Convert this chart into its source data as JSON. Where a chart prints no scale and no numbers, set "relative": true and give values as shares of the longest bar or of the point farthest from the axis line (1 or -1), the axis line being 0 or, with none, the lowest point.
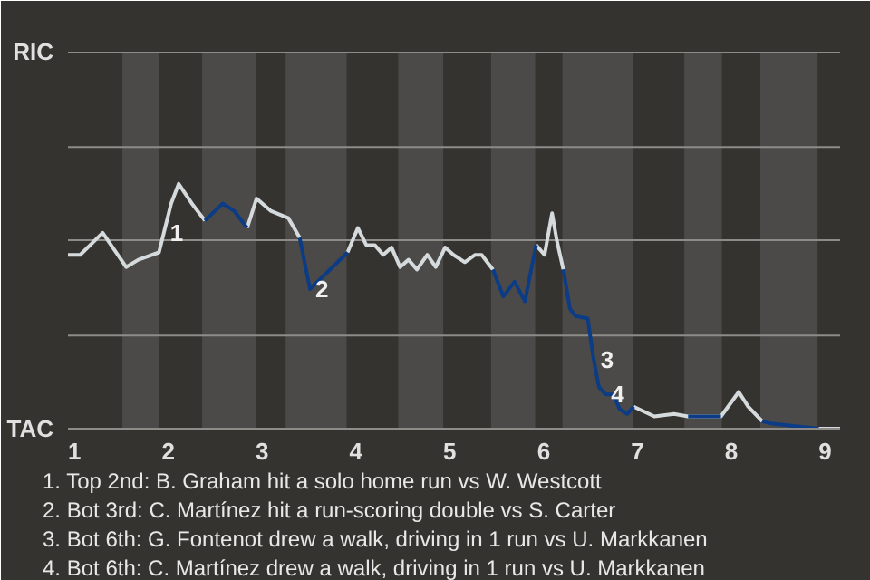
{
  "chart_data": {
    "type": "line",
    "x": [
      0.93,
      1.06,
      1.3,
      1.55,
      1.68,
      1.9,
      2.03,
      2.11,
      2.25,
      2.39,
      2.58,
      2.7,
      2.84,
      2.94,
      3.09,
      3.28,
      3.4,
      3.51,
      3.91,
      4.02,
      4.11,
      4.2,
      4.29,
      4.38,
      4.47,
      4.56,
      4.65,
      4.76,
      4.85,
      4.95,
      5.04,
      5.16,
      5.27,
      5.34,
      5.46,
      5.57,
      5.69,
      5.8,
      5.92,
      6.01,
      6.09,
      6.14,
      6.21,
      6.28,
      6.34,
      6.47,
      6.53,
      6.59,
      6.66,
      6.74,
      6.81,
      6.89,
      6.96,
      7.18,
      7.39,
      7.54,
      7.89,
      8.08,
      8.18,
      8.33,
      8.44,
      8.93,
      9.16
    ],
    "series": [
      {
        "color": "#d5dadd",
        "values": [
          0.71,
          0.71,
          0.8,
          0.66,
          0.69,
          0.72,
          0.92,
          1,
          0.92,
          0.85,
          null,
          null,
          0.82,
          0.94,
          0.89,
          0.86,
          0.78,
          null,
          0.72,
          0.82,
          0.75,
          0.75,
          0.71,
          0.74,
          0.66,
          0.69,
          0.65,
          0.71,
          0.66,
          0.74,
          0.71,
          0.68,
          0.71,
          0.71,
          0.65,
          null,
          null,
          null,
          0.75,
          0.71,
          0.88,
          0.77,
          0.65,
          null,
          null,
          null,
          null,
          null,
          null,
          null,
          null,
          null,
          0.09,
          0.05,
          0.06,
          0.05,
          0.05,
          0.15,
          0.09,
          0.03,
          null,
          0,
          0
        ]
      },
      {
        "color": "#0b3c85",
        "values": [
          null,
          null,
          null,
          null,
          null,
          null,
          null,
          null,
          null,
          0.85,
          0.92,
          0.89,
          0.82,
          null,
          null,
          null,
          0.78,
          0.57,
          0.72,
          null,
          null,
          null,
          null,
          null,
          null,
          null,
          null,
          null,
          null,
          null,
          null,
          null,
          null,
          null,
          0.65,
          0.54,
          0.6,
          0.52,
          0.75,
          null,
          null,
          null,
          0.65,
          0.49,
          0.46,
          0.45,
          0.29,
          0.17,
          0.14,
          0.14,
          0.08,
          0.06,
          0.09,
          null,
          null,
          0.05,
          0.05,
          null,
          null,
          0.03,
          0.02,
          0,
          null
        ]
      }
    ],
    "xlim": [
      0.93,
      9.16
    ],
    "xticks": [
      1,
      2,
      3,
      4,
      5,
      6,
      7,
      8,
      9
    ],
    "relative": true,
    "ref_lines": [
      {
        "axis": "y",
        "value": 0,
        "color": "#8e8c88"
      },
      {
        "axis": "y",
        "value": 0.38,
        "color": "#8e8c88"
      },
      {
        "axis": "y",
        "value": 0.77,
        "color": "#8e8c88"
      },
      {
        "axis": "y",
        "value": 1.15,
        "color": "#8e8c88"
      },
      {
        "axis": "y",
        "value": 1.54,
        "color": "#8e8c88"
      }
    ],
    "bands": [
      {
        "axis": "x",
        "from": 1.51,
        "to": 1.9,
        "color": "#4b4a48"
      },
      {
        "axis": "x",
        "from": 2.36,
        "to": 2.93,
        "color": "#4b4a48"
      },
      {
        "axis": "x",
        "from": 3.25,
        "to": 3.9,
        "color": "#4b4a48"
      },
      {
        "axis": "x",
        "from": 4.45,
        "to": 4.93,
        "color": "#4b4a48"
      },
      {
        "axis": "x",
        "from": 5.44,
        "to": 5.91,
        "color": "#4b4a48"
      },
      {
        "axis": "x",
        "from": 6.2,
        "to": 6.95,
        "color": "#4b4a48"
      },
      {
        "axis": "x",
        "from": 7.5,
        "to": 7.9,
        "color": "#4b4a48"
      },
      {
        "axis": "x",
        "from": 8.31,
        "to": 8.92,
        "color": "#4b4a48"
      }
    ],
    "annotations": [
      {
        "text": "RIC",
        "x": 0.93,
        "y": 1.54
      },
      {
        "text": "TAC",
        "x": 0.93,
        "y": 0
      },
      {
        "text": "1",
        "x": 1.96,
        "y": 0.8
      },
      {
        "text": "2",
        "x": 3.51,
        "y": 0.57
      },
      {
        "text": "3",
        "x": 6.55,
        "y": 0.28
      },
      {
        "text": "4",
        "x": 6.66,
        "y": 0.14
      },
      "1. Top 2nd: B. Graham hit a solo home run vs W. Westcott",
      "2. Bot 3rd: C. Martínez hit a run-scoring double vs S. Carter",
      "3. Bot 6th: G. Fontenot drew a walk, driving in 1 run vs U. Markkanen",
      "4. Bot 6th: C. Martínez drew a walk, driving in 1 run vs U. Markkanen"
    ]
  }
}
